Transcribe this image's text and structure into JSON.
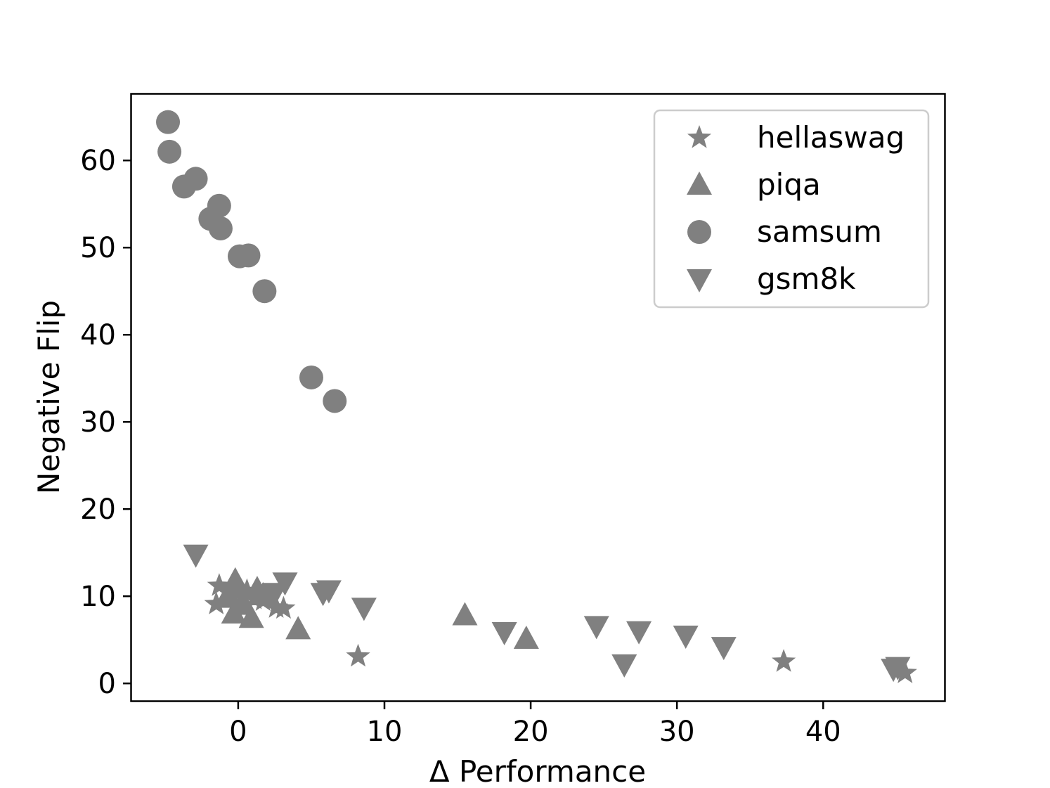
{
  "chart_data": {
    "type": "scatter",
    "title": "",
    "xlabel": "Δ Performance",
    "ylabel": "Negative Flip",
    "xlim": [
      -7.3,
      48.3
    ],
    "ylim": [
      -2.0,
      67.6
    ],
    "xticks": [
      0,
      10,
      20,
      30,
      40
    ],
    "yticks": [
      0,
      10,
      20,
      30,
      40,
      50,
      60
    ],
    "grid": false,
    "legend_position": "top-right",
    "marker_color": "#808080",
    "series": [
      {
        "name": "hellaswag",
        "marker": "star",
        "points": [
          {
            "x": -1.3,
            "y": 11.2
          },
          {
            "x": -1.5,
            "y": 9.1
          },
          {
            "x": -0.5,
            "y": 10.3
          },
          {
            "x": 0.3,
            "y": 10.2
          },
          {
            "x": 0.6,
            "y": 10.6
          },
          {
            "x": 1.1,
            "y": 9.7
          },
          {
            "x": 1.7,
            "y": 9.5
          },
          {
            "x": 2.6,
            "y": 8.7
          },
          {
            "x": 3.1,
            "y": 8.6
          },
          {
            "x": 8.2,
            "y": 3.1
          },
          {
            "x": 37.3,
            "y": 2.5
          },
          {
            "x": 45.6,
            "y": 1.2
          }
        ]
      },
      {
        "name": "piqa",
        "marker": "triangle-up",
        "points": [
          {
            "x": -0.8,
            "y": 9.8
          },
          {
            "x": -0.2,
            "y": 11.8
          },
          {
            "x": -0.3,
            "y": 8.0
          },
          {
            "x": 0.3,
            "y": 9.0
          },
          {
            "x": 0.9,
            "y": 7.5
          },
          {
            "x": 1.3,
            "y": 10.8
          },
          {
            "x": 1.7,
            "y": 10.1
          },
          {
            "x": 4.1,
            "y": 6.2
          },
          {
            "x": 15.5,
            "y": 7.8
          },
          {
            "x": 19.7,
            "y": 5.1
          }
        ]
      },
      {
        "name": "samsum",
        "marker": "circle",
        "points": [
          {
            "x": -4.8,
            "y": 64.4
          },
          {
            "x": -4.7,
            "y": 61.0
          },
          {
            "x": -3.7,
            "y": 57.0
          },
          {
            "x": -2.9,
            "y": 57.9
          },
          {
            "x": -1.9,
            "y": 53.3
          },
          {
            "x": -1.3,
            "y": 54.8
          },
          {
            "x": -1.2,
            "y": 52.2
          },
          {
            "x": 0.1,
            "y": 49.0
          },
          {
            "x": 0.7,
            "y": 49.1
          },
          {
            "x": 1.8,
            "y": 45.0
          },
          {
            "x": 5.0,
            "y": 35.1
          },
          {
            "x": 6.6,
            "y": 32.4
          }
        ]
      },
      {
        "name": "gsm8k",
        "marker": "triangle-down",
        "points": [
          {
            "x": -2.9,
            "y": 14.8
          },
          {
            "x": -0.4,
            "y": 10.3
          },
          {
            "x": 2.5,
            "y": 10.4
          },
          {
            "x": 3.2,
            "y": 11.6
          },
          {
            "x": 5.8,
            "y": 10.4
          },
          {
            "x": 6.2,
            "y": 10.7
          },
          {
            "x": 8.6,
            "y": 8.7
          },
          {
            "x": 18.2,
            "y": 5.9
          },
          {
            "x": 24.5,
            "y": 6.6
          },
          {
            "x": 26.4,
            "y": 2.2
          },
          {
            "x": 27.4,
            "y": 6.0
          },
          {
            "x": 30.6,
            "y": 5.5
          },
          {
            "x": 33.2,
            "y": 4.2
          },
          {
            "x": 44.8,
            "y": 1.7
          },
          {
            "x": 45.1,
            "y": 1.9
          }
        ]
      }
    ]
  }
}
